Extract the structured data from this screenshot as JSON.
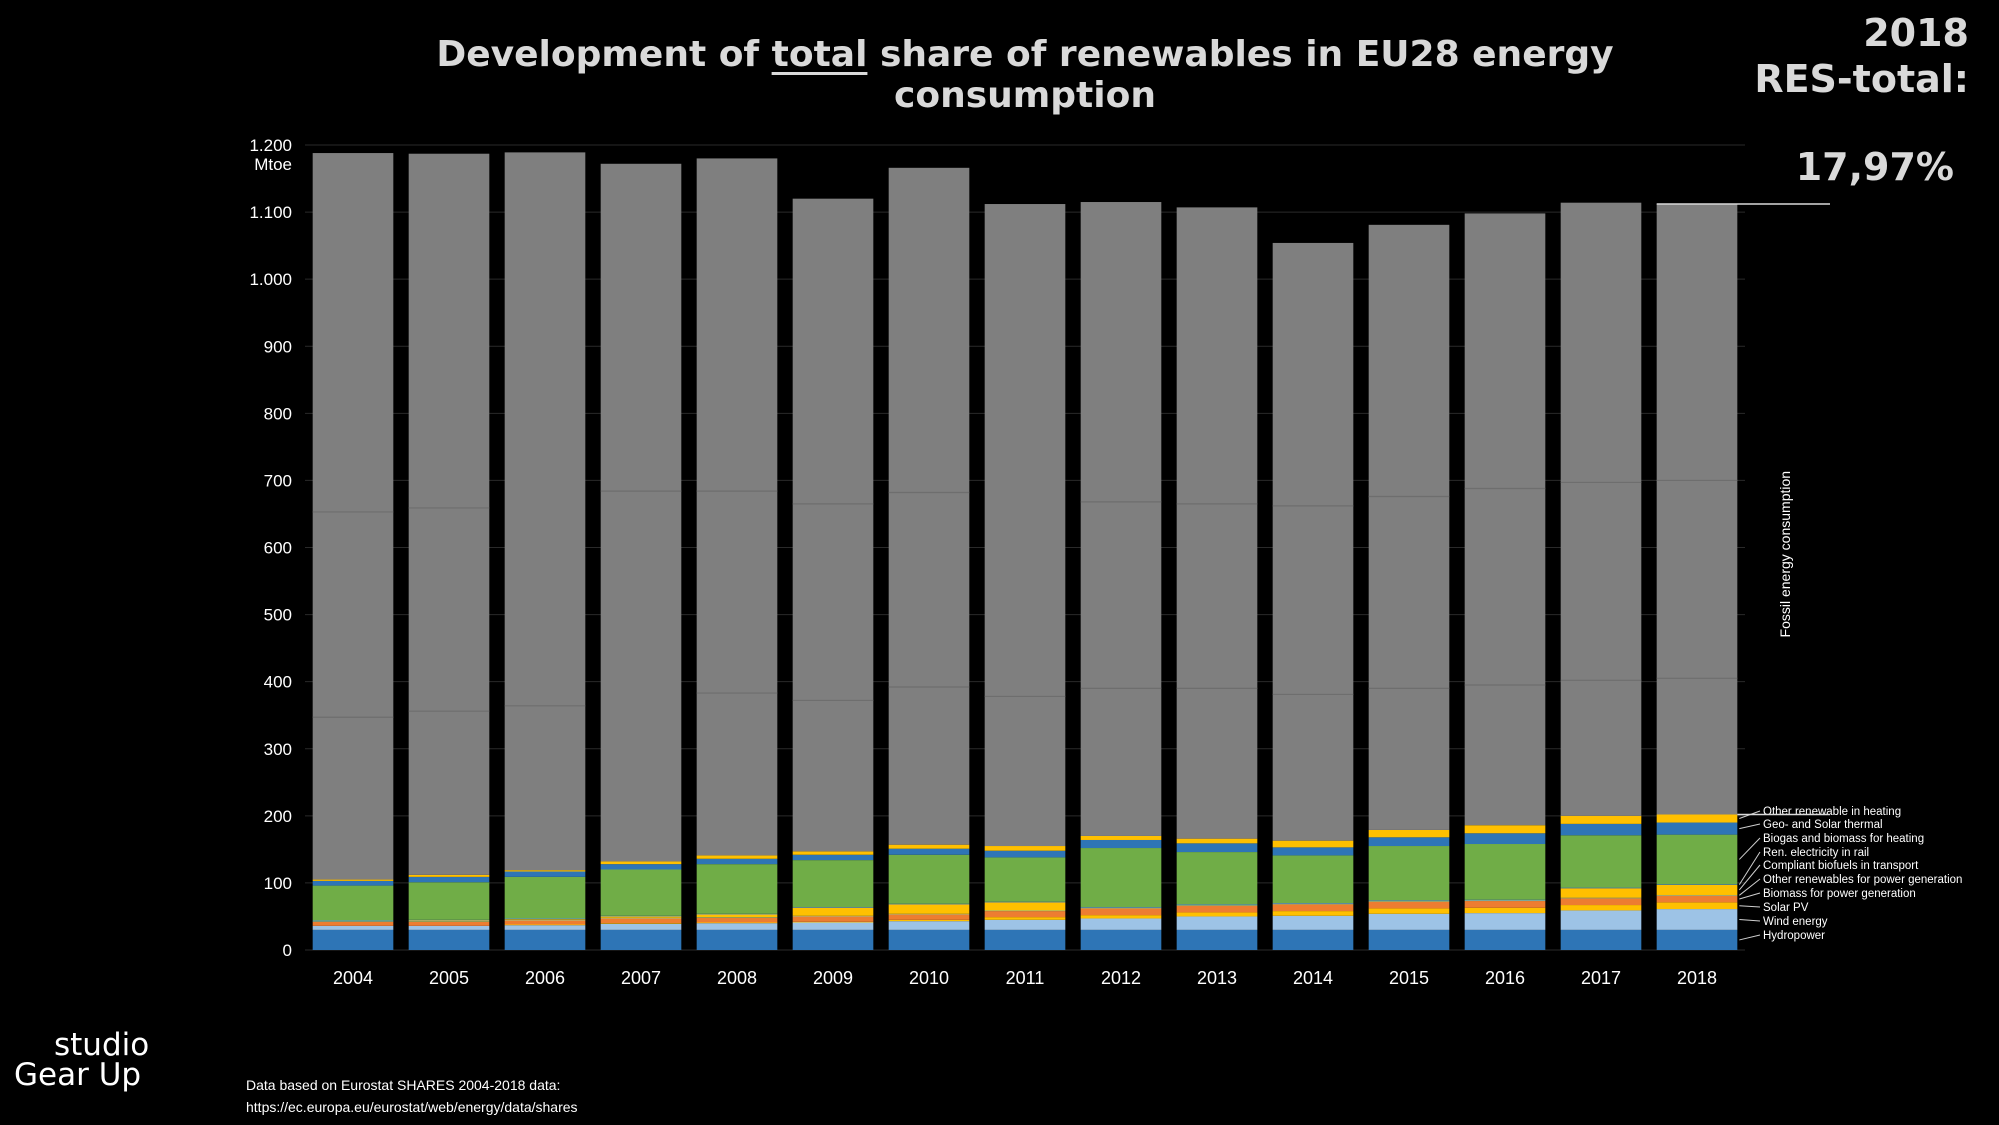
{
  "title": {
    "before": "Development of ",
    "underlined": "total",
    "after": " share of renewables in EU28 energy consumption"
  },
  "res_total": {
    "year": "2018",
    "label": "RES-total:",
    "value": "17,97%"
  },
  "brand": {
    "line1": "studio",
    "line2": "Gear Up"
  },
  "source": {
    "line1": "Data  based on Eurostat SHARES 2004-2018 data:",
    "line2": "https://ec.europa.eu/eurostat/web/energy/data/shares"
  },
  "colors": {
    "background": "#000000",
    "fossil": "#7f7f7f",
    "hydropower": "#2e75b6",
    "wind": "#9dc3e6",
    "solar_pv": "#ffc000",
    "biomass_power": "#ed7d31",
    "other_power": "#a9d18e",
    "biofuels": "#ffc000",
    "rail": "#5b9bd5",
    "heating_biomass": "#70ad47",
    "geo_solar": "#2e75b6",
    "other_heating": "#ffc000"
  },
  "chart_data": {
    "type": "bar",
    "stacked": true,
    "ylabel": "Mtoe",
    "ylim": [
      0,
      1200
    ],
    "yticks": [
      0,
      100,
      200,
      300,
      400,
      500,
      600,
      700,
      800,
      900,
      1000,
      1100,
      1200
    ],
    "ytick_labels": [
      "0",
      "100",
      "200",
      "300",
      "400",
      "500",
      "600",
      "700",
      "800",
      "900",
      "1.000",
      "1.100",
      "1.200"
    ],
    "grid": true,
    "legend_placement": "right",
    "categories": [
      "2004",
      "2005",
      "2006",
      "2007",
      "2008",
      "2009",
      "2010",
      "2011",
      "2012",
      "2013",
      "2014",
      "2015",
      "2016",
      "2017",
      "2018"
    ],
    "series": [
      {
        "name": "Hydropower",
        "color": "#2e75b6",
        "values": [
          30,
          30,
          30,
          30,
          30,
          30,
          30,
          30,
          30,
          30,
          30,
          30,
          30,
          30,
          30
        ]
      },
      {
        "name": "Wind energy",
        "color": "#9dc3e6",
        "values": [
          6,
          6,
          7,
          9,
          10,
          11,
          13,
          15,
          17,
          20,
          21,
          24,
          25,
          29,
          31
        ]
      },
      {
        "name": "Solar PV",
        "color": "#ffc000",
        "values": [
          0,
          0,
          1,
          1,
          1,
          1,
          2,
          4,
          5,
          6,
          7,
          8,
          8,
          8,
          10
        ]
      },
      {
        "name": "Biomass for power generation",
        "color": "#ed7d31",
        "values": [
          6,
          6,
          6,
          7,
          7,
          8,
          8,
          9,
          10,
          10,
          10,
          10,
          10,
          10,
          10
        ]
      },
      {
        "name": "Other renewables for power generation",
        "color": "#a9d18e",
        "values": [
          1,
          1,
          1,
          1,
          1,
          1,
          1,
          1,
          1,
          1,
          1,
          1,
          1,
          1,
          1
        ]
      },
      {
        "name": "Compliant biofuels in transport",
        "color": "#ffc000",
        "values": [
          0,
          1,
          1,
          2,
          4,
          12,
          14,
          12,
          0,
          0,
          0,
          0,
          0,
          14,
          15
        ]
      },
      {
        "name": "Ren. electricity in rail",
        "color": "#5b9bd5",
        "values": [
          1,
          1,
          1,
          1,
          1,
          1,
          1,
          1,
          1,
          1,
          1,
          1,
          1,
          1,
          1
        ]
      },
      {
        "name": "Biogas and biomass for heating",
        "color": "#70ad47",
        "values": [
          52,
          56,
          62,
          69,
          74,
          70,
          73,
          66,
          88,
          78,
          71,
          81,
          83,
          78,
          74
        ]
      },
      {
        "name": "Geo- and Solar thermal",
        "color": "#2e75b6",
        "values": [
          7,
          8,
          8,
          8,
          8,
          8,
          9,
          10,
          12,
          13,
          12,
          13,
          16,
          17,
          18
        ]
      },
      {
        "name": "Other renewable in heating",
        "color": "#ffc000",
        "values": [
          2,
          3,
          2,
          4,
          5,
          5,
          6,
          7,
          6,
          7,
          10,
          11,
          12,
          12,
          12
        ]
      },
      {
        "name": "Fossil energy consumption",
        "color": "#7f7f7f",
        "values": [
          1083,
          1075,
          1070,
          1040,
          1039,
          973,
          1009,
          957,
          945,
          941,
          891,
          902,
          912,
          914,
          910
        ]
      }
    ],
    "fossil_divisions": [
      [
        347,
        653
      ],
      [
        356,
        659
      ],
      [
        364,
        0
      ],
      [
        0,
        684
      ],
      [
        383,
        684
      ],
      [
        372,
        665
      ],
      [
        392,
        682
      ],
      [
        378,
        0
      ],
      [
        390,
        668
      ],
      [
        390,
        665
      ],
      [
        381,
        662
      ],
      [
        390,
        676
      ],
      [
        395,
        688
      ],
      [
        402,
        697
      ],
      [
        405,
        700
      ]
    ]
  }
}
